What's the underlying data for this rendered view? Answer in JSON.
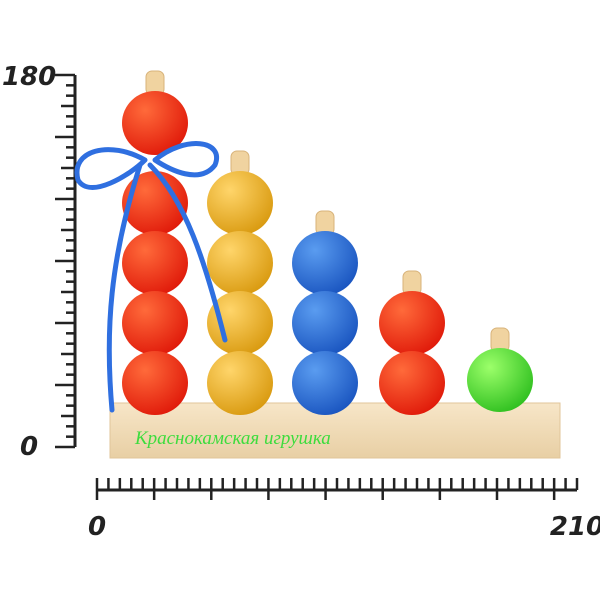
{
  "vertical_ruler": {
    "top_label": "180",
    "bottom_label": "0"
  },
  "horizontal_ruler": {
    "start_label": "0",
    "end_label": "210"
  },
  "brand_label": "Краснокамская игрушка"
}
